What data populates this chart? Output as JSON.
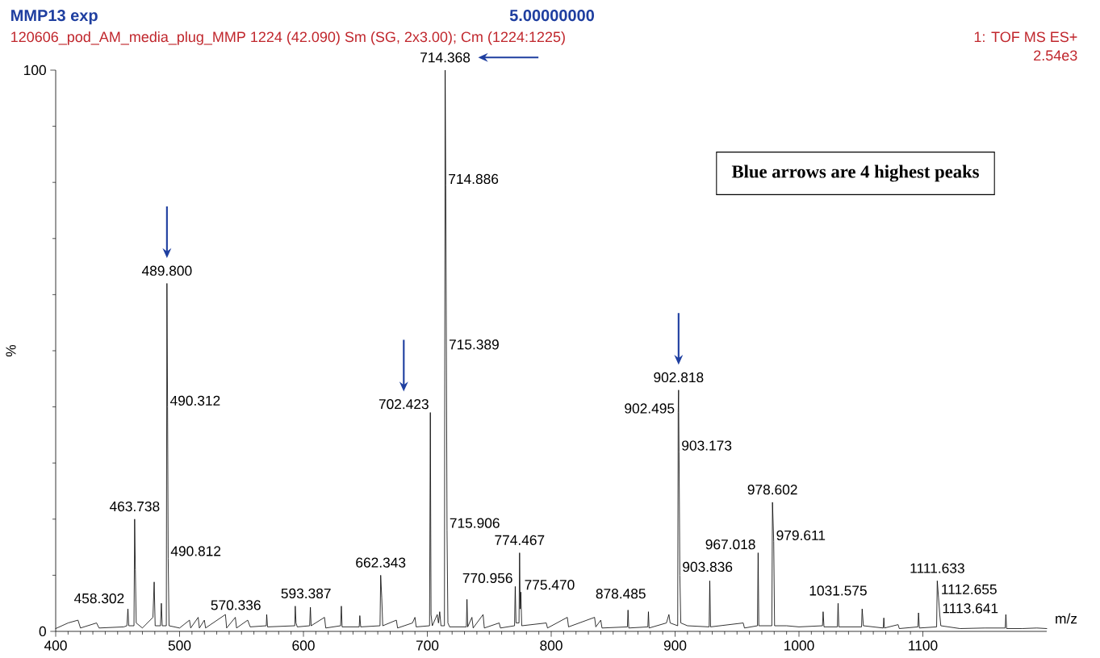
{
  "chart_data": {
    "type": "line",
    "title": "MMP13 exp",
    "subtitle": "120606_pod_AM_media_plug_MMP  1224 (42.090) Sm (SG, 2x3.00); Cm (1224:1225)",
    "xlabel": "m/z",
    "ylabel": "%",
    "xlim": [
      400,
      1200
    ],
    "ylim": [
      0,
      100
    ],
    "xticks": [
      400,
      500,
      600,
      700,
      800,
      900,
      1000,
      1100
    ],
    "yticks": [
      0,
      100
    ],
    "series": [
      {
        "color": "#000000",
        "x": [
          400,
          410,
          418,
          420,
          433,
          435,
          455,
          457.5,
          458.302,
          459,
          463.2,
          463.738,
          464.3,
          465,
          470,
          478.5,
          479.5,
          480.3,
          484.6,
          485.3,
          486,
          489.3,
          489.8,
          490.312,
          490.812,
          491.5,
          500,
          508,
          509,
          515,
          516,
          520,
          521,
          537,
          538,
          545,
          546,
          555,
          557,
          570,
          570.336,
          571,
          593,
          593.387,
          594,
          595,
          605,
          605.6,
          606.2,
          617,
          618,
          630,
          630.6,
          631.2,
          645,
          645.5,
          646.2,
          661.8,
          662.343,
          663.2,
          664,
          675,
          676,
          688,
          690,
          691,
          701.8,
          702.423,
          703,
          704,
          708,
          709,
          710,
          711,
          713.8,
          714.368,
          714.886,
          715.389,
          715.906,
          716.6,
          718,
          731.5,
          732,
          732.6,
          736,
          737,
          745,
          746,
          758,
          759,
          770.4,
          770.956,
          771.6,
          774,
          774.467,
          775,
          775.47,
          776.2,
          796,
          797,
          813,
          814,
          835,
          836,
          840,
          841,
          861.5,
          862,
          862.6,
          878,
          878.485,
          879,
          893,
          895,
          896,
          902.1,
          902.495,
          902.818,
          903.173,
          903.836,
          904.6,
          910,
          927.5,
          928,
          928.6,
          955,
          956,
          966.5,
          967.018,
          967.6,
          978.1,
          978.602,
          979.611,
          980.3,
          990,
          1000,
          1019,
          1019.5,
          1020.2,
          1031,
          1031.575,
          1032.2,
          1050.5,
          1051,
          1052,
          1068,
          1068.5,
          1069,
          1080,
          1081,
          1096,
          1096.5,
          1097.2,
          1111.1,
          1111.633,
          1112.655,
          1113.641,
          1114.5,
          1130,
          1150,
          1166.5,
          1167,
          1167.6,
          1180,
          1192,
          1200
        ],
        "values": [
          0.5,
          1.5,
          2,
          0.6,
          1.5,
          0.6,
          0.8,
          1,
          4,
          1,
          1,
          20,
          11,
          1.5,
          0.6,
          2.5,
          8.8,
          1,
          1,
          5,
          1,
          1,
          62,
          40,
          13,
          1,
          0.6,
          2,
          0.6,
          2.5,
          0.6,
          2,
          0.6,
          3,
          0.6,
          2.5,
          0.6,
          2,
          0.8,
          1,
          3,
          0.8,
          1,
          4.5,
          1.5,
          0.8,
          1,
          4.3,
          1,
          2.5,
          0.6,
          1,
          4.5,
          0.8,
          0.8,
          2.8,
          0.8,
          1,
          10,
          6,
          1,
          2,
          0.6,
          1.5,
          2.5,
          0.8,
          1,
          39,
          3,
          1,
          3,
          1.5,
          3.5,
          1,
          1,
          100,
          79.5,
          50,
          18,
          1.5,
          0.8,
          0.8,
          5.7,
          0.8,
          2.5,
          0.6,
          3,
          0.6,
          1.5,
          0.6,
          1,
          8,
          1.5,
          1.5,
          14,
          4,
          7,
          1,
          1.5,
          0.6,
          2.5,
          0.8,
          2.5,
          0.8,
          2,
          0.6,
          0.8,
          3.8,
          0.6,
          0.8,
          3.5,
          0.6,
          1.5,
          3,
          1.5,
          1,
          39,
          43,
          32,
          10,
          1.5,
          1,
          0.8,
          9,
          0.8,
          1.5,
          0.6,
          1,
          14,
          1,
          1,
          23,
          16,
          1,
          1,
          0.8,
          1,
          3.5,
          0.8,
          0.8,
          5,
          0.8,
          0.8,
          4,
          1,
          0.6,
          2.4,
          0.6,
          1.2,
          0.5,
          0.8,
          3.3,
          0.6,
          0.8,
          9,
          6,
          3,
          1,
          0.5,
          0.6,
          0.6,
          3,
          0.5,
          0.5,
          0.6,
          0.5
        ]
      }
    ],
    "annotations": [
      {
        "text": "458.302",
        "x": 458.302,
        "y": 4
      },
      {
        "text": "463.738",
        "x": 463.738,
        "y": 20
      },
      {
        "text": "489.800",
        "x": 489.8,
        "y": 62
      },
      {
        "text": "490.312",
        "x": 490.312,
        "y": 40
      },
      {
        "text": "490.812",
        "x": 490.812,
        "y": 13
      },
      {
        "text": "570.336",
        "x": 570.336,
        "y": 3
      },
      {
        "text": "593.387",
        "x": 593.387,
        "y": 4.5
      },
      {
        "text": "662.343",
        "x": 662.343,
        "y": 10
      },
      {
        "text": "702.423",
        "x": 702.423,
        "y": 39
      },
      {
        "text": "714.368",
        "x": 714.368,
        "y": 100
      },
      {
        "text": "714.886",
        "x": 714.886,
        "y": 79.5
      },
      {
        "text": "715.389",
        "x": 715.389,
        "y": 50
      },
      {
        "text": "715.906",
        "x": 715.906,
        "y": 18
      },
      {
        "text": "770.956",
        "x": 770.956,
        "y": 8
      },
      {
        "text": "774.467",
        "x": 774.467,
        "y": 14
      },
      {
        "text": "775.470",
        "x": 775.47,
        "y": 7
      },
      {
        "text": "878.485",
        "x": 878.485,
        "y": 3.5
      },
      {
        "text": "902.495",
        "x": 902.495,
        "y": 39
      },
      {
        "text": "902.818",
        "x": 902.818,
        "y": 43
      },
      {
        "text": "903.173",
        "x": 903.173,
        "y": 32
      },
      {
        "text": "903.836",
        "x": 903.836,
        "y": 10
      },
      {
        "text": "967.018",
        "x": 967.018,
        "y": 14
      },
      {
        "text": "978.602",
        "x": 978.602,
        "y": 23
      },
      {
        "text": "979.611",
        "x": 979.611,
        "y": 16
      },
      {
        "text": "1031.575",
        "x": 1031.575,
        "y": 5
      },
      {
        "text": "1111.633",
        "x": 1111.633,
        "y": 9
      },
      {
        "text": "1112.655",
        "x": 1112.655,
        "y": 6
      },
      {
        "text": "1113.641",
        "x": 1113.641,
        "y": 3
      },
      "Blue arrows are 4 highest peaks",
      "5.00000000",
      "1: TOF MS ES+",
      "2.54e3"
    ]
  }
}
